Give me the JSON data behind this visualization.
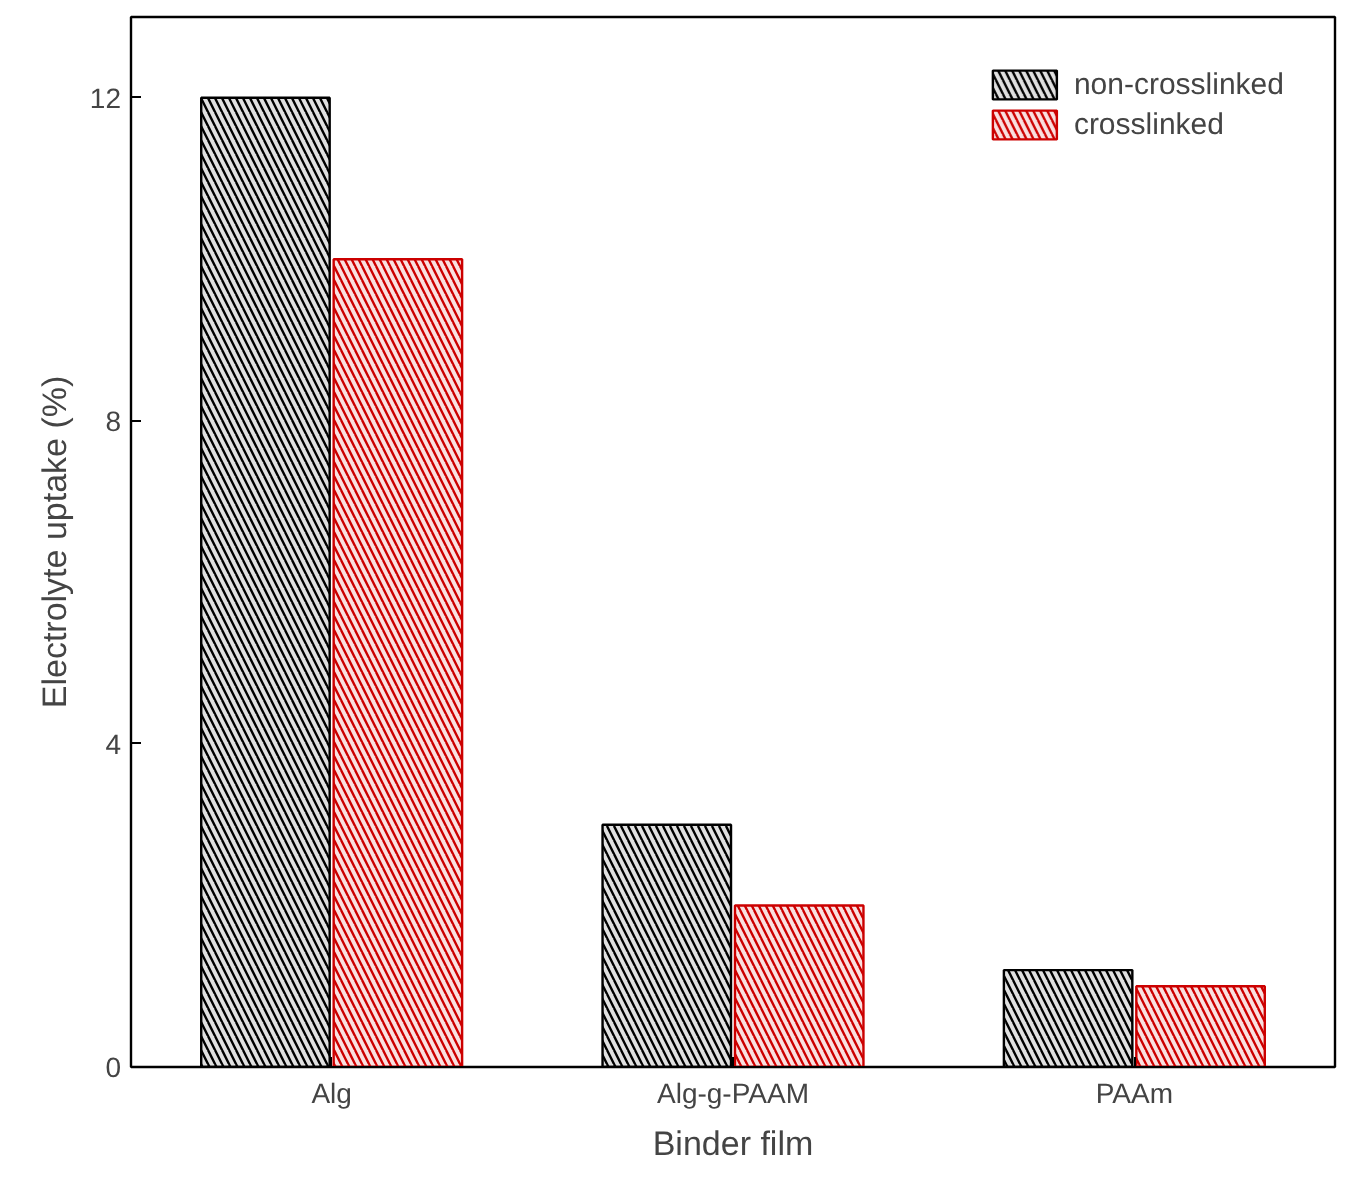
{
  "chart_data": {
    "type": "bar",
    "xlabel": "Binder film",
    "ylabel": "Electrolyte uptake (%)",
    "categories": [
      "Alg",
      "Alg-g-PAAM",
      "PAAm"
    ],
    "series": [
      {
        "name": "non-crosslinked",
        "color": "#000000",
        "values": [
          12,
          3.0,
          1.2
        ]
      },
      {
        "name": "crosslinked",
        "color": "#cc0000",
        "values": [
          10,
          2.0,
          1.0
        ]
      }
    ],
    "ylim": [
      0,
      13
    ],
    "yticks": [
      0,
      4,
      8,
      12
    ],
    "grid": false,
    "legend": "top right"
  }
}
